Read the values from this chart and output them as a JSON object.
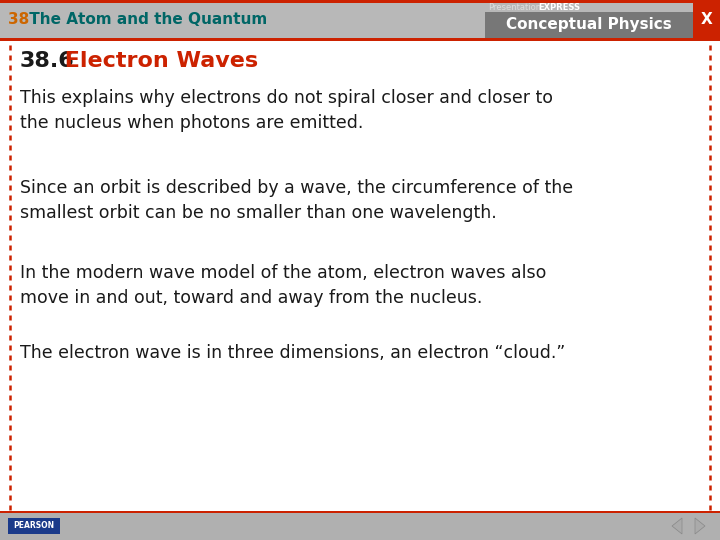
{
  "header_bg": "#b8b8b8",
  "header_text_number": "38",
  "header_text_title": " The Atom and the Quantum",
  "header_number_color": "#cc6600",
  "header_title_color": "#006666",
  "top_bar_color": "#cc2200",
  "bottom_bar_color": "#b0b0b0",
  "slide_bg": "#ffffff",
  "border_color": "#cc2200",
  "section_number": "38.6",
  "section_title": " Electron Waves",
  "section_number_color": "#1a1a1a",
  "section_title_color": "#cc2200",
  "bullets": [
    "This explains why electrons do not spiral closer and closer to\nthe nucleus when photons are emitted.",
    "Since an orbit is described by a wave, the circumference of the\nsmallest orbit can be no smaller than one wavelength.",
    "In the modern wave model of the atom, electron waves also\nmove in and out, toward and away from the nucleus.",
    "The electron wave is in three dimensions, an electron “cloud.”"
  ],
  "bullet_color": "#1a1a1a",
  "conceptual_physics_bg": "#777777",
  "presentation_text_color": "#dddddd",
  "express_text_color": "#ffffff",
  "x_box_color": "#cc2200",
  "pearson_bg": "#1a3a8a",
  "pearson_text": "PEARSON",
  "nav_arrow_color": "#aaaaaa"
}
